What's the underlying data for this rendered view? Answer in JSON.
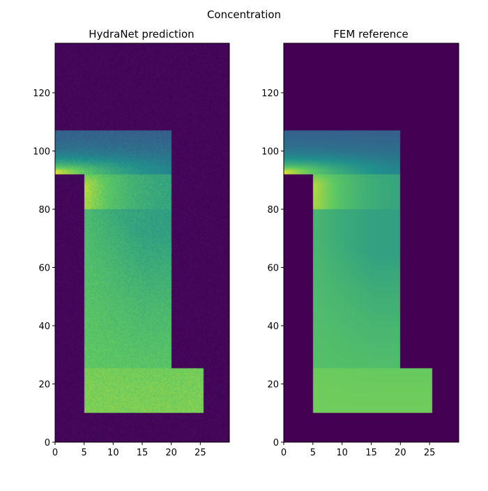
{
  "figure": {
    "suptitle": "Concentration"
  },
  "colors": {
    "background": "#440154",
    "colormap": "viridis",
    "gradient_stops": [
      "#440154",
      "#3b528b",
      "#21908d",
      "#5dc863",
      "#fde725"
    ]
  },
  "chart_data": [
    {
      "type": "heatmap",
      "title": "HydraNet prediction",
      "xlabel": "",
      "ylabel": "",
      "xlim": [
        0,
        30
      ],
      "ylim": [
        0,
        137
      ],
      "xticks": [
        0,
        5,
        10,
        15,
        20,
        25
      ],
      "yticks": [
        0,
        20,
        40,
        60,
        80,
        100,
        120
      ],
      "grid": false,
      "field": {
        "domain_shape": "L-shaped channel",
        "outer_value": 0.0,
        "top_band": {
          "x": [
            0,
            20
          ],
          "y": [
            92,
            107
          ],
          "inlet_value": 0.95,
          "far_value": 0.35
        },
        "vertical_channel": {
          "x": [
            5,
            20
          ],
          "y": [
            10,
            107
          ],
          "typical_value": 0.75
        },
        "bottom_leg": {
          "x": [
            5,
            25.5
          ],
          "y": [
            10,
            25.5
          ],
          "typical_value": 0.8
        },
        "noisy": true
      }
    },
    {
      "type": "heatmap",
      "title": "FEM reference",
      "xlabel": "",
      "ylabel": "",
      "xlim": [
        0,
        30
      ],
      "ylim": [
        0,
        137
      ],
      "xticks": [
        0,
        5,
        10,
        15,
        20,
        25
      ],
      "yticks": [
        0,
        20,
        40,
        60,
        80,
        100,
        120
      ],
      "grid": false,
      "field": {
        "domain_shape": "L-shaped channel",
        "outer_value": 0.0,
        "top_band": {
          "x": [
            0,
            20
          ],
          "y": [
            92,
            107
          ],
          "inlet_value": 0.95,
          "far_value": 0.35
        },
        "vertical_channel": {
          "x": [
            5,
            20
          ],
          "y": [
            10,
            107
          ],
          "typical_value": 0.72
        },
        "bottom_leg": {
          "x": [
            5,
            25.5
          ],
          "y": [
            10,
            25.5
          ],
          "typical_value": 0.78
        },
        "noisy": false
      }
    }
  ]
}
